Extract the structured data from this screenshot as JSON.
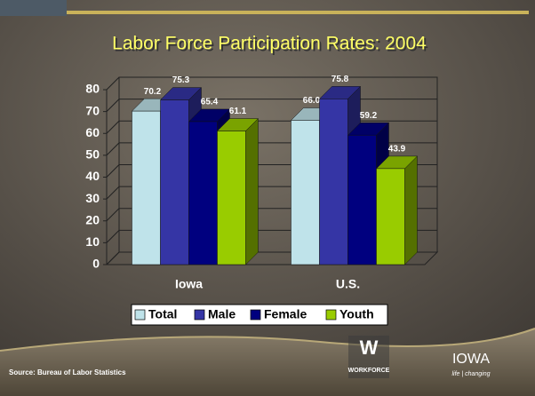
{
  "chart_data": {
    "type": "bar3d",
    "title": "Labor Force Participation Rates: 2004",
    "categories": [
      "Iowa",
      "U.S."
    ],
    "series": [
      {
        "name": "Total",
        "color": "#bfe3ea",
        "values": [
          70.2,
          66.0
        ],
        "value_labels": [
          "70.2",
          "66.0"
        ]
      },
      {
        "name": "Male",
        "color": "#3535a5",
        "values": [
          75.3,
          75.8
        ],
        "value_labels": [
          "75.3",
          "75.8"
        ]
      },
      {
        "name": "Female",
        "color": "#00007f",
        "values": [
          65.4,
          59.2
        ],
        "value_labels": [
          "65.4",
          "59.2"
        ]
      },
      {
        "name": "Youth",
        "color": "#99cc00",
        "values": [
          61.1,
          43.9
        ],
        "value_labels": [
          "61.1",
          "43.9"
        ]
      }
    ],
    "ylim": [
      0,
      80
    ],
    "yticks": [
      0,
      10,
      20,
      30,
      40,
      50,
      60,
      70,
      80
    ],
    "grid": true,
    "legend": "bottom",
    "source": "Source: Bureau of Labor Statistics",
    "logos": {
      "workforce": "WORKFORCE",
      "iowa": "IOWA",
      "tagline": "life | changing"
    }
  }
}
